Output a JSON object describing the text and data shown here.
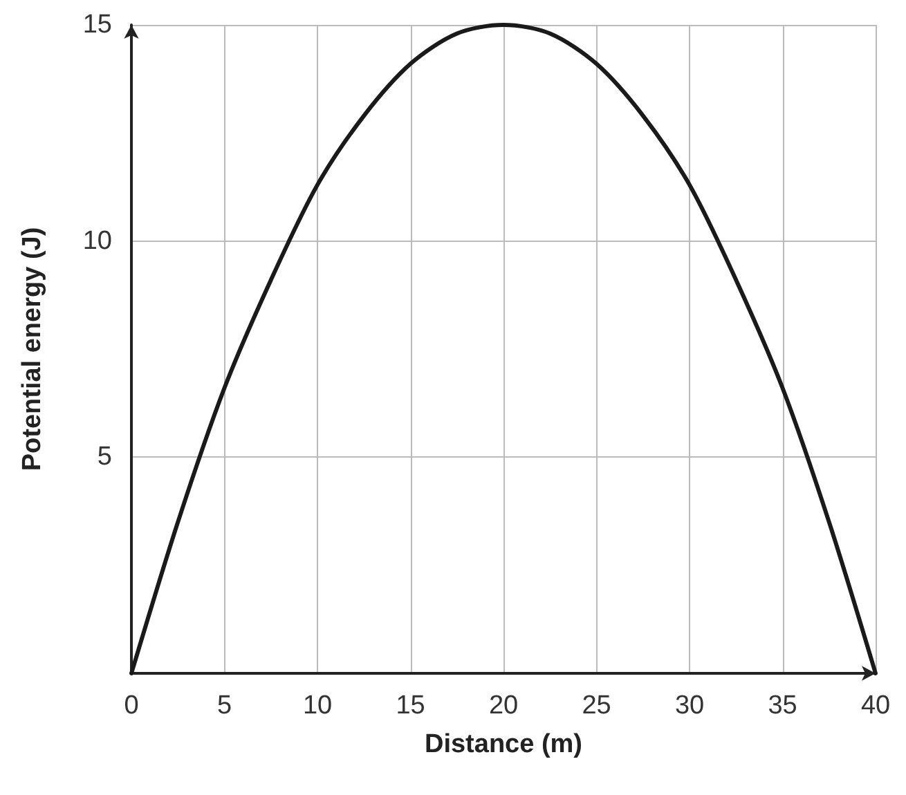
{
  "chart_data": {
    "type": "line",
    "xlabel": "Distance (m)",
    "ylabel": "Potential energy (J)",
    "x": [
      0,
      2.5,
      5,
      7.5,
      10,
      12.5,
      15,
      17.5,
      20,
      22.5,
      25,
      27.5,
      30,
      32.5,
      35,
      37.5,
      40
    ],
    "series": [
      {
        "color": "#1a1a1a",
        "values": [
          0,
          3.5,
          6.6,
          9.1,
          11.3,
          12.9,
          14.1,
          14.8,
          15,
          14.8,
          14.1,
          12.9,
          11.3,
          9.1,
          6.6,
          3.5,
          0
        ]
      }
    ],
    "xlim": [
      0,
      40
    ],
    "xticks": [
      0,
      5,
      10,
      15,
      20,
      25,
      30,
      35,
      40
    ],
    "ylim": [
      0,
      15
    ],
    "yticks": [
      {
        "value": 0,
        "label": null
      },
      5,
      10,
      15
    ],
    "grid": true,
    "marker": "none",
    "line_style": "solid"
  }
}
